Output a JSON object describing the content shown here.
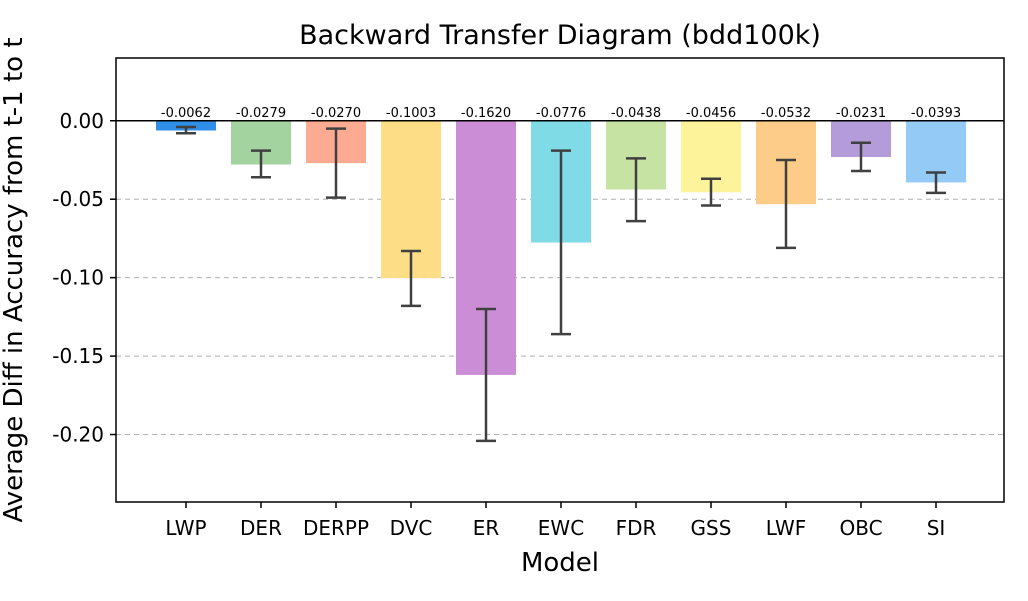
{
  "chart_data": {
    "type": "bar",
    "title": "Backward Transfer Diagram (bdd100k)",
    "xlabel": "Model",
    "ylabel": "Average Diff in Accuracy from t-1 to t",
    "ylim": [
      -0.243,
      0.04
    ],
    "yticks": [
      0.0,
      -0.05,
      -0.1,
      -0.15,
      -0.2
    ],
    "ytick_labels": [
      "0.00",
      "-0.05",
      "-0.10",
      "-0.15",
      "-0.20"
    ],
    "grid": "horizontal dashed",
    "categories": [
      "LWP",
      "DER",
      "DERPP",
      "DVC",
      "ER",
      "EWC",
      "FDR",
      "GSS",
      "LWF",
      "OBC",
      "SI"
    ],
    "values": [
      -0.0062,
      -0.0279,
      -0.027,
      -0.1003,
      -0.162,
      -0.0776,
      -0.0438,
      -0.0456,
      -0.0532,
      -0.0231,
      -0.0393
    ],
    "value_labels": [
      "-0.0062",
      "-0.0279",
      "-0.0270",
      "-0.1003",
      "-0.1620",
      "-0.0776",
      "-0.0438",
      "-0.0456",
      "-0.0532",
      "-0.0231",
      "-0.0393"
    ],
    "error_low": [
      -0.008,
      -0.036,
      -0.049,
      -0.118,
      -0.204,
      -0.136,
      -0.064,
      -0.054,
      -0.081,
      -0.032,
      -0.046
    ],
    "error_high": [
      -0.004,
      -0.019,
      -0.005,
      -0.083,
      -0.12,
      -0.019,
      -0.024,
      -0.037,
      -0.025,
      -0.014,
      -0.033
    ],
    "colors": [
      "#2f8fe8",
      "#a3d4a0",
      "#fcab92",
      "#fdde86",
      "#cb8ed6",
      "#7fdbe6",
      "#c7e3a3",
      "#fdf39a",
      "#fdcc89",
      "#b49cdb",
      "#93caf6"
    ]
  }
}
